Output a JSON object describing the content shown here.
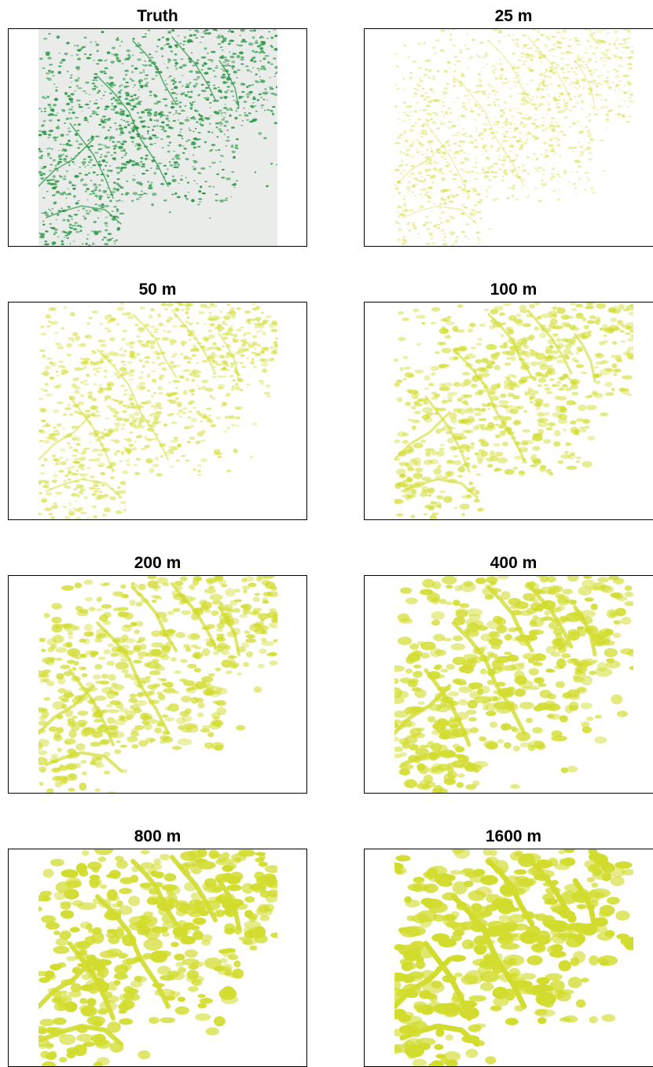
{
  "figure": {
    "panels": [
      {
        "title": "Truth",
        "kind": "truth"
      },
      {
        "title": "25 m",
        "kind": "prediction"
      },
      {
        "title": "50 m",
        "kind": "prediction"
      },
      {
        "title": "100 m",
        "kind": "prediction"
      },
      {
        "title": "200 m",
        "kind": "prediction"
      },
      {
        "title": "400 m",
        "kind": "prediction"
      },
      {
        "title": "800 m",
        "kind": "prediction"
      },
      {
        "title": "1600 m",
        "kind": "prediction"
      }
    ],
    "colors": {
      "truth_background": "#e9ece9",
      "truth_feature": "#2f9a4a",
      "prediction_background": "#ffffff",
      "prediction_feature": "#d2dc2e",
      "frame": "#000000"
    }
  }
}
